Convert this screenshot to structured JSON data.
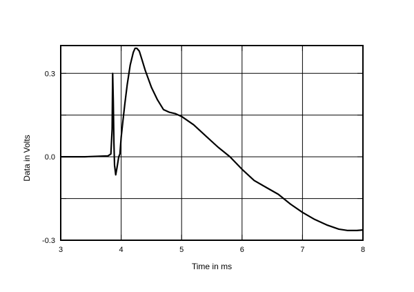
{
  "chart_data": {
    "type": "line",
    "title": "",
    "xlabel": "Time in ms",
    "ylabel": "Data in Volts",
    "xlim": [
      3,
      8
    ],
    "ylim": [
      -0.3,
      0.4
    ],
    "grid": true,
    "x_ticks": [
      3,
      4,
      5,
      6,
      7,
      8
    ],
    "x_tick_labels": [
      "3",
      "4",
      "5",
      "6",
      "7",
      "8"
    ],
    "y_ticks": [
      -0.3,
      0.0,
      0.3
    ],
    "y_tick_labels": [
      "-0.3",
      "0.0",
      "0.3"
    ],
    "y_grid_lines": [
      -0.15,
      0.0,
      0.15,
      0.3
    ],
    "series": [
      {
        "color": "#000000",
        "x": [
          3.0,
          3.4,
          3.78,
          3.83,
          3.85,
          3.86,
          3.87,
          3.88,
          3.89,
          3.91,
          3.93,
          3.96,
          3.98,
          4.0,
          4.03,
          4.06,
          4.1,
          4.15,
          4.2,
          4.23,
          4.26,
          4.3,
          4.35,
          4.4,
          4.5,
          4.6,
          4.7,
          4.8,
          4.9,
          5.0,
          5.2,
          5.4,
          5.6,
          5.8,
          6.0,
          6.2,
          6.4,
          6.6,
          6.8,
          7.0,
          7.2,
          7.4,
          7.6,
          7.75,
          7.9,
          8.0
        ],
        "y": [
          0.0,
          0.0,
          0.003,
          0.01,
          0.1,
          0.3,
          0.2,
          0.05,
          -0.03,
          -0.065,
          -0.04,
          0.0,
          0.01,
          0.07,
          0.13,
          0.19,
          0.26,
          0.33,
          0.375,
          0.39,
          0.39,
          0.38,
          0.345,
          0.31,
          0.25,
          0.205,
          0.17,
          0.16,
          0.155,
          0.145,
          0.115,
          0.075,
          0.035,
          0.0,
          -0.045,
          -0.085,
          -0.11,
          -0.135,
          -0.17,
          -0.2,
          -0.225,
          -0.245,
          -0.26,
          -0.265,
          -0.265,
          -0.263
        ]
      }
    ]
  }
}
